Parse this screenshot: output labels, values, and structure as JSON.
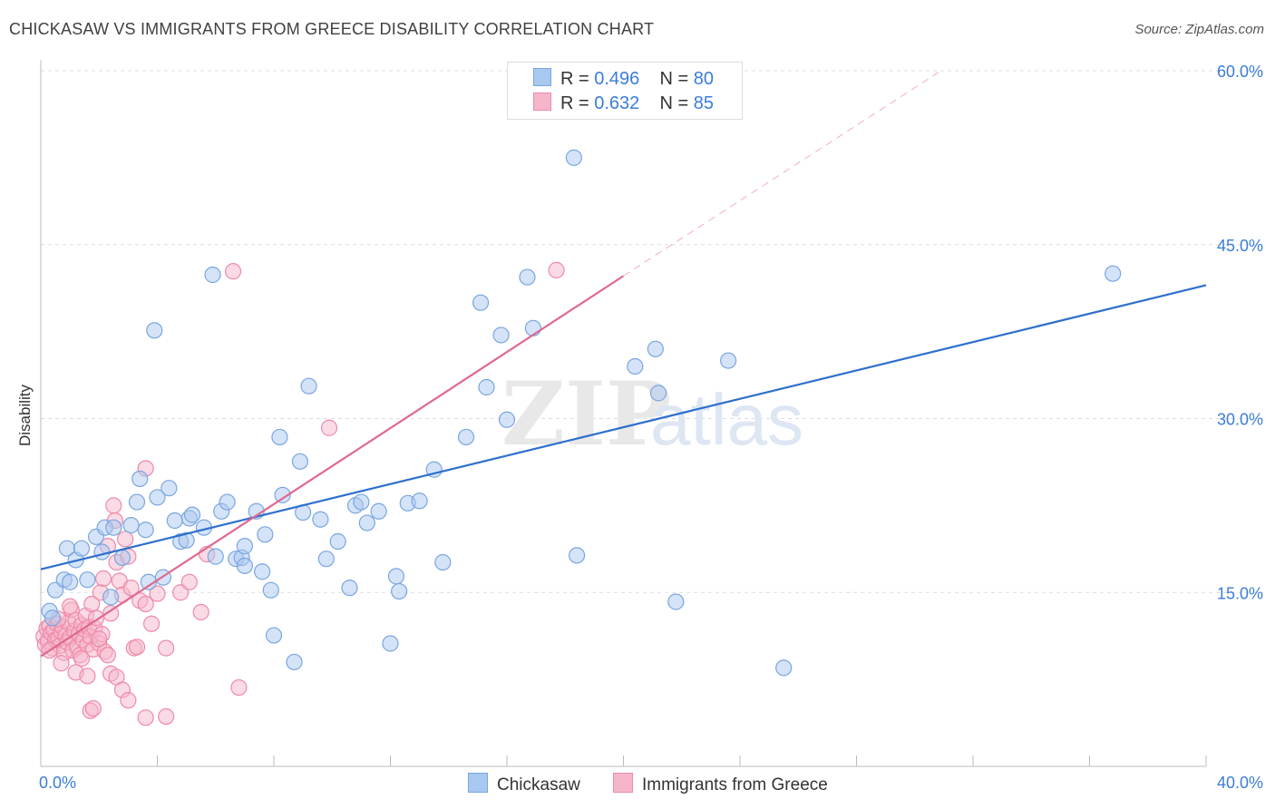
{
  "title": "CHICKASAW VS IMMIGRANTS FROM GREECE DISABILITY CORRELATION CHART",
  "source": "Source: ZipAtlas.com",
  "watermark": {
    "zip": "ZIP",
    "atlas": "atlas"
  },
  "legend": {
    "r_label": "R =",
    "n_label": "N =",
    "series": [
      {
        "name": "Chickasaw",
        "r": "0.496",
        "n": "80"
      },
      {
        "name": "Immigrants from Greece",
        "r": "0.632",
        "n": "85"
      }
    ]
  },
  "colors": {
    "blue_fill": "#a9c8f0",
    "blue_stroke": "#7aa6e0",
    "blue_line": "#2e6fcc",
    "pink_fill": "#f6b6ca",
    "pink_stroke": "#ee8aaa",
    "pink_line": "#e06890",
    "tick_text": "#3b7dd8",
    "grid": "#dddddd"
  },
  "chart_data": {
    "type": "scatter",
    "title": "CHICKASAW VS IMMIGRANTS FROM GREECE DISABILITY CORRELATION CHART",
    "xlabel": "",
    "ylabel": "Disability",
    "xlim": [
      0,
      40
    ],
    "ylim": [
      0,
      60
    ],
    "x_tick_labels": [
      "0.0%",
      "40.0%"
    ],
    "y_ticks": [
      15,
      30,
      45,
      60
    ],
    "y_tick_labels": [
      "15.0%",
      "30.0%",
      "45.0%",
      "60.0%"
    ],
    "series": [
      {
        "name": "Chickasaw",
        "r": 0.496,
        "n": 80,
        "trend": {
          "x0": 0,
          "y0": 17.0,
          "x1": 40,
          "y1": 41.5
        },
        "points": [
          [
            0.3,
            13.4
          ],
          [
            0.5,
            15.2
          ],
          [
            0.8,
            16.1
          ],
          [
            0.9,
            18.8
          ],
          [
            1.0,
            15.9
          ],
          [
            1.2,
            17.8
          ],
          [
            1.4,
            18.8
          ],
          [
            1.6,
            16.1
          ],
          [
            1.9,
            19.8
          ],
          [
            2.1,
            18.5
          ],
          [
            2.2,
            20.6
          ],
          [
            2.4,
            14.6
          ],
          [
            2.5,
            20.6
          ],
          [
            3.1,
            20.8
          ],
          [
            3.3,
            22.8
          ],
          [
            3.6,
            20.4
          ],
          [
            3.7,
            15.9
          ],
          [
            3.9,
            37.6
          ],
          [
            4.0,
            23.2
          ],
          [
            4.2,
            16.3
          ],
          [
            4.4,
            24.0
          ],
          [
            4.6,
            21.2
          ],
          [
            4.8,
            19.4
          ],
          [
            5.1,
            21.4
          ],
          [
            5.2,
            21.7
          ],
          [
            5.6,
            20.6
          ],
          [
            5.9,
            42.4
          ],
          [
            6.0,
            18.1
          ],
          [
            6.2,
            22.0
          ],
          [
            6.4,
            22.8
          ],
          [
            6.7,
            17.9
          ],
          [
            6.9,
            18.0
          ],
          [
            7.0,
            19.0
          ],
          [
            7.0,
            17.3
          ],
          [
            7.4,
            22.0
          ],
          [
            7.6,
            16.8
          ],
          [
            7.7,
            20.0
          ],
          [
            7.9,
            15.2
          ],
          [
            8.0,
            11.3
          ],
          [
            8.2,
            28.4
          ],
          [
            8.3,
            23.4
          ],
          [
            8.7,
            9.0
          ],
          [
            8.9,
            26.3
          ],
          [
            9.0,
            21.9
          ],
          [
            9.2,
            32.8
          ],
          [
            9.6,
            21.3
          ],
          [
            9.8,
            17.9
          ],
          [
            10.2,
            19.4
          ],
          [
            10.6,
            15.4
          ],
          [
            10.8,
            22.5
          ],
          [
            11.0,
            22.8
          ],
          [
            11.2,
            21.0
          ],
          [
            11.6,
            22.0
          ],
          [
            12.0,
            10.6
          ],
          [
            12.2,
            16.4
          ],
          [
            12.3,
            15.1
          ],
          [
            12.6,
            22.7
          ],
          [
            13.0,
            22.9
          ],
          [
            13.5,
            25.6
          ],
          [
            13.8,
            17.6
          ],
          [
            14.6,
            28.4
          ],
          [
            15.1,
            40.0
          ],
          [
            15.3,
            32.7
          ],
          [
            15.8,
            37.2
          ],
          [
            16.0,
            29.9
          ],
          [
            16.7,
            42.2
          ],
          [
            16.9,
            37.8
          ],
          [
            18.3,
            52.5
          ],
          [
            18.4,
            18.2
          ],
          [
            20.4,
            34.5
          ],
          [
            21.1,
            36.0
          ],
          [
            21.2,
            32.2
          ],
          [
            21.8,
            14.2
          ],
          [
            23.6,
            35.0
          ],
          [
            25.5,
            8.5
          ],
          [
            36.8,
            42.5
          ],
          [
            0.4,
            12.8
          ],
          [
            2.8,
            18.0
          ],
          [
            5.0,
            19.5
          ],
          [
            3.4,
            24.8
          ]
        ]
      },
      {
        "name": "Immigrants from Greece",
        "r": 0.632,
        "n": 85,
        "trend": {
          "x0": 0,
          "y0": 9.5,
          "x1": 20,
          "y1": 42.3
        },
        "trend_ext": {
          "x0": 20,
          "y0": 42.3,
          "x1": 30.9,
          "y1": 60.0
        },
        "points": [
          [
            0.1,
            11.2
          ],
          [
            0.15,
            10.5
          ],
          [
            0.2,
            11.9
          ],
          [
            0.25,
            10.8
          ],
          [
            0.3,
            12.1
          ],
          [
            0.35,
            11.5
          ],
          [
            0.4,
            10.2
          ],
          [
            0.45,
            11.8
          ],
          [
            0.5,
            10.9
          ],
          [
            0.55,
            12.3
          ],
          [
            0.6,
            11.0
          ],
          [
            0.65,
            10.4
          ],
          [
            0.7,
            11.6
          ],
          [
            0.75,
            12.0
          ],
          [
            0.8,
            9.8
          ],
          [
            0.85,
            11.3
          ],
          [
            0.9,
            10.7
          ],
          [
            0.95,
            12.4
          ],
          [
            1.0,
            11.1
          ],
          [
            1.05,
            13.5
          ],
          [
            1.1,
            10.0
          ],
          [
            1.15,
            11.7
          ],
          [
            1.2,
            12.6
          ],
          [
            1.25,
            10.3
          ],
          [
            1.3,
            11.4
          ],
          [
            1.35,
            9.6
          ],
          [
            1.4,
            12.2
          ],
          [
            1.45,
            10.9
          ],
          [
            1.5,
            11.8
          ],
          [
            1.55,
            13.0
          ],
          [
            1.6,
            10.5
          ],
          [
            1.65,
            12.0
          ],
          [
            1.7,
            11.2
          ],
          [
            1.75,
            14.0
          ],
          [
            1.8,
            10.1
          ],
          [
            1.85,
            11.9
          ],
          [
            1.9,
            12.8
          ],
          [
            2.0,
            10.6
          ],
          [
            2.05,
            15.0
          ],
          [
            2.1,
            11.4
          ],
          [
            2.15,
            16.2
          ],
          [
            2.2,
            9.9
          ],
          [
            2.3,
            19.0
          ],
          [
            2.4,
            13.2
          ],
          [
            2.5,
            22.5
          ],
          [
            2.55,
            21.2
          ],
          [
            2.6,
            17.6
          ],
          [
            2.7,
            16.0
          ],
          [
            2.8,
            14.8
          ],
          [
            2.9,
            19.6
          ],
          [
            3.0,
            18.1
          ],
          [
            3.1,
            15.4
          ],
          [
            3.2,
            10.2
          ],
          [
            3.3,
            10.3
          ],
          [
            3.4,
            14.3
          ],
          [
            3.6,
            25.7
          ],
          [
            3.8,
            12.3
          ],
          [
            4.0,
            14.9
          ],
          [
            4.3,
            10.2
          ],
          [
            4.8,
            15.0
          ],
          [
            5.1,
            15.9
          ],
          [
            5.5,
            13.3
          ],
          [
            5.7,
            18.3
          ],
          [
            6.6,
            42.7
          ],
          [
            6.8,
            6.8
          ],
          [
            9.9,
            29.2
          ],
          [
            17.7,
            42.8
          ],
          [
            0.7,
            8.9
          ],
          [
            1.2,
            8.1
          ],
          [
            1.6,
            7.8
          ],
          [
            1.7,
            4.8
          ],
          [
            1.8,
            5.0
          ],
          [
            2.3,
            9.6
          ],
          [
            2.4,
            8.0
          ],
          [
            2.6,
            7.7
          ],
          [
            2.8,
            6.6
          ],
          [
            3.0,
            5.7
          ],
          [
            3.6,
            4.2
          ],
          [
            4.3,
            4.3
          ],
          [
            3.6,
            14.0
          ],
          [
            0.3,
            10.0
          ],
          [
            0.6,
            12.7
          ],
          [
            1.0,
            13.8
          ],
          [
            1.4,
            9.3
          ],
          [
            2.0,
            11.0
          ]
        ]
      }
    ]
  }
}
